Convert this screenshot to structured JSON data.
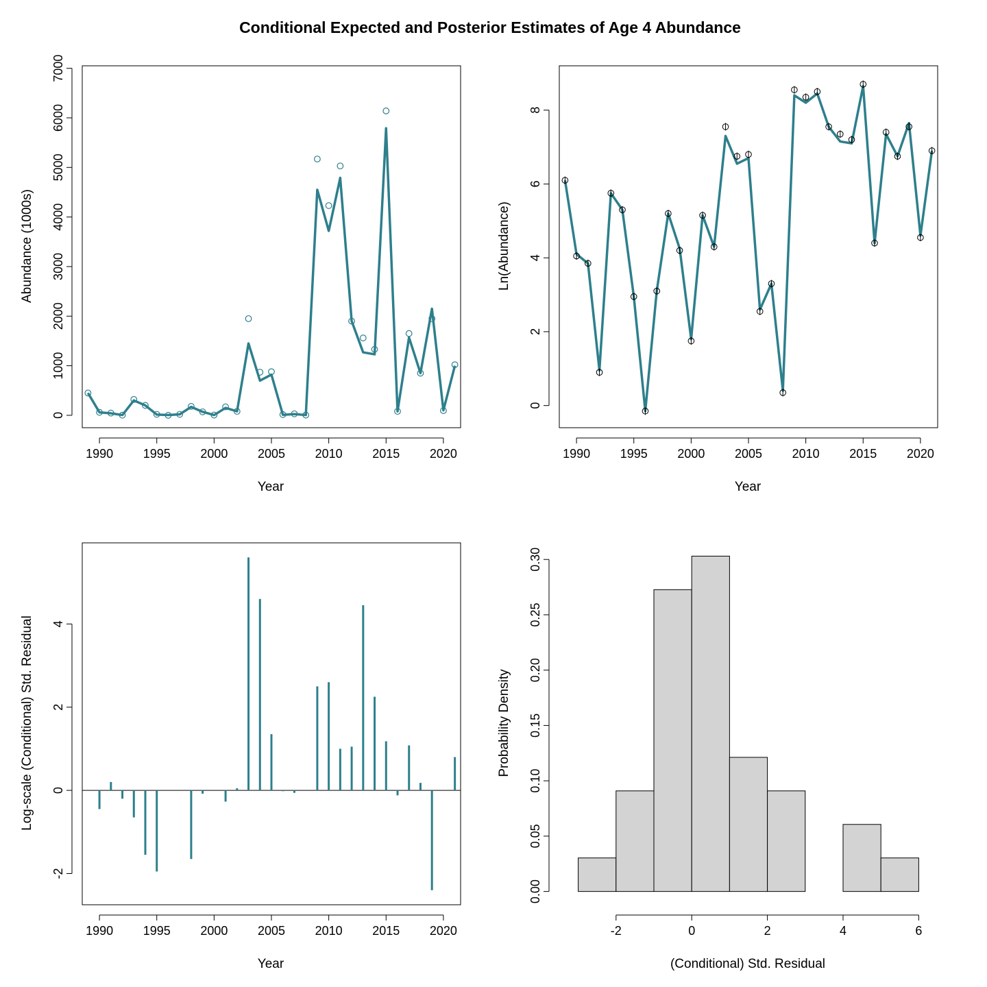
{
  "title": "Conditional Expected and Posterior Estimates of Age 4 Abundance",
  "colors": {
    "series": "#2e7f8c",
    "hist_fill": "#d3d3d3",
    "axis": "#000000"
  },
  "chart_data": [
    {
      "type": "line",
      "xlabel": "Year",
      "ylabel": "Abundance (1000s)",
      "xlim": [
        1988.5,
        2021.5
      ],
      "ylim": [
        -250,
        7050
      ],
      "xticks": [
        "1990",
        "1995",
        "2000",
        "2005",
        "2010",
        "2015",
        "2020"
      ],
      "yticks": [
        "0",
        "1000",
        "2000",
        "3000",
        "4000",
        "5000",
        "6000",
        "7000"
      ],
      "x": [
        1989,
        1990,
        1991,
        1992,
        1993,
        1994,
        1995,
        1996,
        1997,
        1998,
        1999,
        2000,
        2001,
        2002,
        2003,
        2004,
        2005,
        2006,
        2007,
        2008,
        2009,
        2010,
        2011,
        2012,
        2013,
        2014,
        2015,
        2016,
        2017,
        2018,
        2019,
        2020,
        2021
      ],
      "series": [
        {
          "values": [
            450,
            60,
            40,
            5,
            300,
            200,
            15,
            5,
            20,
            170,
            70,
            5,
            150,
            80,
            1450,
            700,
            820,
            10,
            25,
            5,
            4550,
            3720,
            4790,
            1900,
            1270,
            1230,
            5790,
            80,
            1570,
            850,
            2150,
            100,
            1000
          ]
        },
        {
          "values": [
            450,
            60,
            45,
            3,
            320,
            200,
            20,
            0,
            20,
            180,
            70,
            5,
            170,
            80,
            1950,
            870,
            880,
            15,
            30,
            5,
            5170,
            4230,
            5030,
            1900,
            1560,
            1330,
            6140,
            80,
            1650,
            850,
            1950,
            95,
            1020
          ]
        }
      ]
    },
    {
      "type": "line",
      "xlabel": "Year",
      "ylabel": "Ln(Abundance)",
      "xlim": [
        1988.5,
        2021.5
      ],
      "ylim": [
        -0.6,
        9.2
      ],
      "xticks": [
        "1990",
        "1995",
        "2000",
        "2005",
        "2010",
        "2015",
        "2020"
      ],
      "yticks": [
        "0",
        "2",
        "4",
        "6",
        "8"
      ],
      "x": [
        1989,
        1990,
        1991,
        1992,
        1993,
        1994,
        1995,
        1996,
        1997,
        1998,
        1999,
        2000,
        2001,
        2002,
        2003,
        2004,
        2005,
        2006,
        2007,
        2008,
        2009,
        2010,
        2011,
        2012,
        2013,
        2014,
        2015,
        2016,
        2017,
        2018,
        2019,
        2020,
        2021
      ],
      "series": [
        {
          "values": [
            6.1,
            4.1,
            3.85,
            0.95,
            5.75,
            5.3,
            2.95,
            -0.15,
            3.1,
            5.2,
            4.25,
            1.8,
            5.15,
            4.3,
            7.3,
            6.55,
            6.7,
            2.6,
            3.3,
            0.4,
            8.4,
            8.2,
            8.45,
            7.55,
            7.15,
            7.1,
            8.65,
            4.4,
            7.35,
            6.75,
            7.65,
            4.6,
            6.9
          ]
        },
        {
          "values": [
            6.1,
            4.05,
            3.85,
            0.9,
            5.75,
            5.3,
            2.95,
            -0.15,
            3.1,
            5.2,
            4.2,
            1.75,
            5.15,
            4.3,
            7.55,
            6.75,
            6.8,
            2.55,
            3.3,
            0.35,
            8.55,
            8.35,
            8.5,
            7.55,
            7.35,
            7.2,
            8.7,
            4.4,
            7.4,
            6.75,
            7.55,
            4.55,
            6.9
          ]
        }
      ]
    },
    {
      "type": "bar",
      "xlabel": "Year",
      "ylabel": "Log-scale (Conditional) Std. Residual",
      "xlim": [
        1988.5,
        2021.5
      ],
      "ylim": [
        -2.75,
        5.95
      ],
      "xticks": [
        "1990",
        "1995",
        "2000",
        "2005",
        "2010",
        "2015",
        "2020"
      ],
      "yticks": [
        "-2",
        "0",
        "2",
        "4"
      ],
      "x": [
        1989,
        1990,
        1991,
        1992,
        1993,
        1994,
        1995,
        1996,
        1997,
        1998,
        1999,
        2000,
        2001,
        2002,
        2003,
        2004,
        2005,
        2006,
        2007,
        2008,
        2009,
        2010,
        2011,
        2012,
        2013,
        2014,
        2015,
        2016,
        2017,
        2018,
        2019,
        2020,
        2021
      ],
      "values": [
        0,
        -0.45,
        0.2,
        -0.2,
        -0.65,
        -1.55,
        -1.95,
        0,
        0,
        -1.65,
        -0.08,
        0,
        -0.27,
        0.05,
        5.6,
        4.6,
        1.35,
        -0.02,
        -0.06,
        0,
        2.5,
        2.6,
        1.0,
        1.05,
        4.45,
        2.25,
        1.18,
        -0.12,
        1.08,
        0.18,
        -2.4,
        0,
        0.8
      ]
    },
    {
      "type": "bar",
      "xlabel": "(Conditional) Std. Residual",
      "ylabel": "Probability Density",
      "xlim": [
        -3.5,
        6.5
      ],
      "ylim": [
        -0.012,
        0.315
      ],
      "xticks": [
        "-2",
        "0",
        "2",
        "4",
        "6"
      ],
      "yticks": [
        "0.00",
        "0.05",
        "0.10",
        "0.15",
        "0.20",
        "0.25",
        "0.30"
      ],
      "bin_edges": [
        -3,
        -2,
        -1,
        0,
        1,
        2,
        3,
        4,
        5,
        6
      ],
      "values": [
        0.0303,
        0.0909,
        0.2727,
        0.303,
        0.1212,
        0.0909,
        0,
        0.0606,
        0.0303
      ]
    }
  ]
}
